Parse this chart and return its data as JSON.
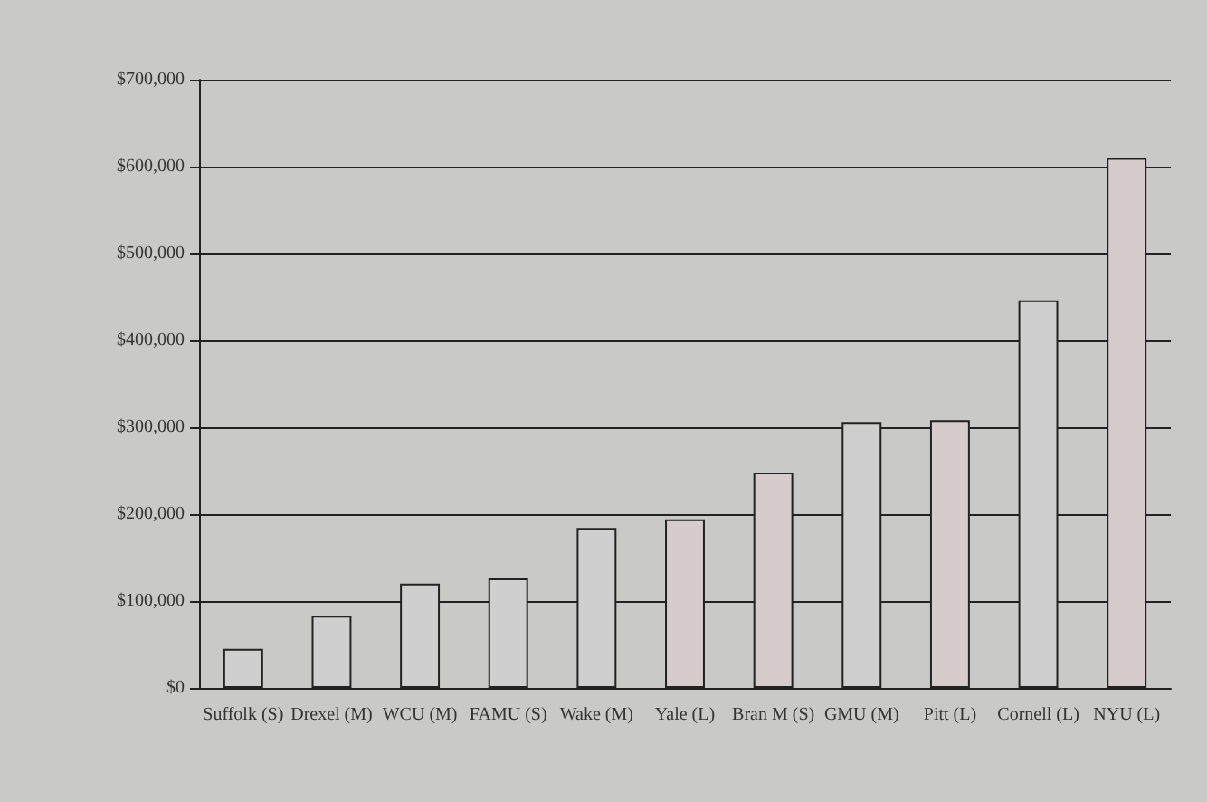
{
  "chart_data": {
    "type": "bar",
    "categories": [
      "Suffolk (S)",
      "Drexel (M)",
      "WCU (M)",
      "FAMU (S)",
      "Wake (M)",
      "Yale (L)",
      "Bran M (S)",
      "GMU (M)",
      "Pitt (L)",
      "Cornell (L)",
      "NYU (L)"
    ],
    "values": [
      45000,
      83000,
      120000,
      126000,
      184000,
      194000,
      248000,
      306000,
      308000,
      446000,
      610000
    ],
    "colors": [
      "#cfcfcf",
      "#cfcfcf",
      "#cfcfcf",
      "#cfcfcf",
      "#cfcfcf",
      "#d6cccc",
      "#d6cccc",
      "#cfcfcf",
      "#d6cccc",
      "#cfcfcf",
      "#d6cccc"
    ],
    "ylim": [
      0,
      700000
    ],
    "yticks": [
      {
        "value": 0,
        "label": "$0"
      },
      {
        "value": 100000,
        "label": "$100,000"
      },
      {
        "value": 200000,
        "label": "$200,000"
      },
      {
        "value": 300000,
        "label": "$300,000"
      },
      {
        "value": 400000,
        "label": "$400,000"
      },
      {
        "value": 500000,
        "label": "$500,000"
      },
      {
        "value": 600000,
        "label": "$600,000"
      },
      {
        "value": 700000,
        "label": "$700,000"
      }
    ],
    "grid": "y"
  }
}
